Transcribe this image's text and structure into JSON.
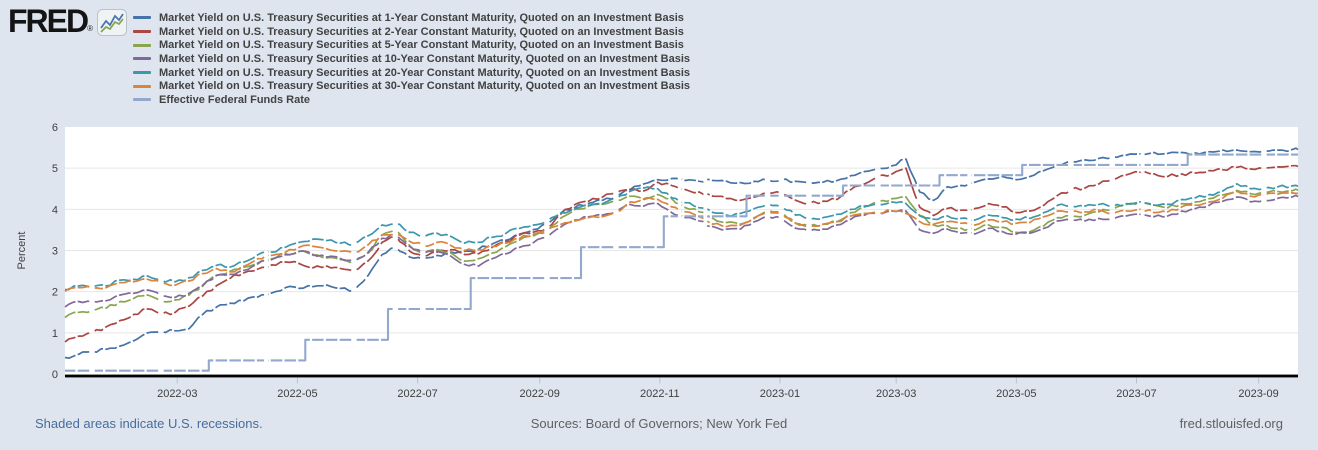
{
  "logo": {
    "text": "FRED",
    "registered": "®"
  },
  "legend": [
    {
      "label": "Market Yield on U.S. Treasury Securities at 1-Year Constant Maturity, Quoted on an Investment Basis",
      "color": "#4572a7"
    },
    {
      "label": "Market Yield on U.S. Treasury Securities at 2-Year Constant Maturity, Quoted on an Investment Basis",
      "color": "#aa4643"
    },
    {
      "label": "Market Yield on U.S. Treasury Securities at 5-Year Constant Maturity, Quoted on an Investment Basis",
      "color": "#89a54e"
    },
    {
      "label": "Market Yield on U.S. Treasury Securities at 10-Year Constant Maturity, Quoted on an Investment Basis",
      "color": "#80699b"
    },
    {
      "label": "Market Yield on U.S. Treasury Securities at 20-Year Constant Maturity, Quoted on an Investment Basis",
      "color": "#3d96ae"
    },
    {
      "label": "Market Yield on U.S. Treasury Securities at 30-Year Constant Maturity, Quoted on an Investment Basis",
      "color": "#db843d"
    },
    {
      "label": "Effective Federal Funds Rate",
      "color": "#92a8cd"
    }
  ],
  "footer": {
    "left": "Shaded areas indicate U.S. recessions.",
    "center": "Sources: Board of Governors; New York Fed",
    "right": "fred.stlouisfed.org"
  },
  "chart_data": {
    "type": "line",
    "title": "",
    "xlabel": "",
    "ylabel": "Percent",
    "ylim": [
      0,
      6
    ],
    "y_ticks": [
      0,
      1,
      2,
      3,
      4,
      5,
      6
    ],
    "grid": true,
    "legend_position": "top-left",
    "x_start_date": "2022-01-03",
    "x_domain_days": [
      0,
      626
    ],
    "sample_step_days": 7,
    "x_ticks": [
      {
        "label": "2022-03",
        "day": 57
      },
      {
        "label": "2022-05",
        "day": 118
      },
      {
        "label": "2022-07",
        "day": 179
      },
      {
        "label": "2022-09",
        "day": 241
      },
      {
        "label": "2022-11",
        "day": 302
      },
      {
        "label": "2023-01",
        "day": 363
      },
      {
        "label": "2023-03",
        "day": 422
      },
      {
        "label": "2023-05",
        "day": 483
      },
      {
        "label": "2023-07",
        "day": 544
      },
      {
        "label": "2023-09",
        "day": 606
      }
    ],
    "gap_days": [
      14,
      49,
      102,
      147,
      168,
      182,
      245,
      280,
      312,
      325,
      357,
      364,
      378,
      413,
      459,
      511,
      532,
      547,
      609
    ],
    "series": [
      {
        "name": "1-Year",
        "color": "#4572a7",
        "values": [
          0.4,
          0.48,
          0.55,
          0.6,
          0.68,
          0.81,
          1.0,
          1.03,
          1.05,
          1.1,
          1.45,
          1.63,
          1.72,
          1.78,
          1.87,
          1.97,
          2.1,
          2.08,
          2.12,
          2.16,
          2.08,
          2.04,
          2.4,
          2.9,
          3.08,
          2.84,
          2.8,
          2.88,
          2.96,
          2.98,
          3.03,
          3.16,
          3.25,
          3.4,
          3.51,
          3.64,
          3.92,
          4.05,
          4.15,
          4.22,
          4.32,
          4.48,
          4.62,
          4.72,
          4.75,
          4.7,
          4.68,
          4.7,
          4.68,
          4.65,
          4.68,
          4.71,
          4.72,
          4.68,
          4.64,
          4.66,
          4.7,
          4.82,
          4.92,
          5.0,
          5.06,
          5.22,
          4.42,
          4.22,
          4.55,
          4.58,
          4.66,
          4.74,
          4.8,
          4.72,
          4.8,
          4.94,
          5.08,
          5.18,
          5.2,
          5.24,
          5.28,
          5.32,
          5.35,
          5.38,
          5.36,
          5.38,
          5.37,
          5.4,
          5.44,
          5.44,
          5.4,
          5.42,
          5.44,
          5.45,
          5.45
        ]
      },
      {
        "name": "2-Year",
        "color": "#aa4643",
        "values": [
          0.78,
          0.92,
          1.0,
          1.15,
          1.3,
          1.45,
          1.58,
          1.45,
          1.5,
          1.65,
          1.9,
          2.15,
          2.33,
          2.46,
          2.55,
          2.65,
          2.72,
          2.68,
          2.58,
          2.62,
          2.56,
          2.5,
          2.75,
          3.2,
          3.35,
          2.98,
          2.85,
          2.96,
          3.02,
          2.9,
          2.92,
          3.08,
          3.22,
          3.38,
          3.45,
          3.56,
          3.9,
          4.12,
          4.2,
          4.3,
          4.4,
          4.48,
          4.45,
          4.66,
          4.58,
          4.48,
          4.42,
          4.32,
          4.26,
          4.22,
          4.3,
          4.4,
          4.38,
          4.22,
          4.14,
          4.2,
          4.24,
          4.48,
          4.62,
          4.8,
          4.86,
          5.0,
          4.05,
          3.85,
          4.02,
          3.98,
          4.02,
          4.14,
          4.06,
          3.92,
          3.96,
          4.1,
          4.34,
          4.48,
          4.52,
          4.62,
          4.72,
          4.84,
          4.9,
          4.86,
          4.8,
          4.86,
          4.88,
          4.94,
          4.96,
          5.02,
          4.98,
          5.0,
          5.03,
          5.06,
          5.04
        ]
      },
      {
        "name": "5-Year",
        "color": "#89a54e",
        "values": [
          1.37,
          1.5,
          1.55,
          1.6,
          1.76,
          1.84,
          1.92,
          1.78,
          1.8,
          1.92,
          2.14,
          2.4,
          2.5,
          2.6,
          2.7,
          2.8,
          2.92,
          2.98,
          2.88,
          2.82,
          2.78,
          2.72,
          2.94,
          3.38,
          3.5,
          3.12,
          2.92,
          3.02,
          2.94,
          2.74,
          2.8,
          2.94,
          3.1,
          3.26,
          3.36,
          3.5,
          3.8,
          4.0,
          4.08,
          4.12,
          4.22,
          4.32,
          4.24,
          4.36,
          4.26,
          4.04,
          3.94,
          3.78,
          3.68,
          3.64,
          3.8,
          3.98,
          3.92,
          3.66,
          3.58,
          3.64,
          3.7,
          3.92,
          4.06,
          4.18,
          4.26,
          4.3,
          3.85,
          3.62,
          3.6,
          3.54,
          3.5,
          3.62,
          3.56,
          3.44,
          3.46,
          3.6,
          3.8,
          3.84,
          3.86,
          3.94,
          4.0,
          4.12,
          4.18,
          4.1,
          4.04,
          4.14,
          4.18,
          4.26,
          4.35,
          4.46,
          4.38,
          4.4,
          4.43,
          4.45,
          4.46
        ]
      },
      {
        "name": "10-Year",
        "color": "#80699b",
        "values": [
          1.63,
          1.76,
          1.76,
          1.78,
          1.92,
          1.96,
          2.04,
          1.9,
          1.86,
          1.96,
          2.16,
          2.4,
          2.42,
          2.52,
          2.68,
          2.78,
          2.9,
          2.98,
          2.9,
          2.84,
          2.8,
          2.76,
          2.96,
          3.3,
          3.38,
          3.1,
          2.92,
          2.98,
          2.86,
          2.66,
          2.62,
          2.8,
          2.92,
          3.08,
          3.2,
          3.32,
          3.58,
          3.74,
          3.82,
          3.86,
          3.96,
          4.12,
          4.08,
          4.14,
          3.92,
          3.8,
          3.72,
          3.58,
          3.52,
          3.52,
          3.7,
          3.84,
          3.76,
          3.54,
          3.46,
          3.52,
          3.62,
          3.76,
          3.86,
          3.92,
          3.96,
          3.96,
          3.5,
          3.42,
          3.52,
          3.42,
          3.4,
          3.54,
          3.46,
          3.4,
          3.42,
          3.54,
          3.72,
          3.74,
          3.72,
          3.78,
          3.76,
          3.84,
          3.88,
          3.82,
          3.84,
          3.96,
          4.02,
          4.1,
          4.2,
          4.3,
          4.18,
          4.22,
          4.27,
          4.3,
          4.31
        ]
      },
      {
        "name": "20-Year",
        "color": "#3d96ae",
        "values": [
          2.05,
          2.14,
          2.12,
          2.14,
          2.28,
          2.3,
          2.38,
          2.28,
          2.24,
          2.34,
          2.52,
          2.64,
          2.6,
          2.72,
          2.9,
          2.96,
          3.08,
          3.2,
          3.28,
          3.24,
          3.18,
          3.16,
          3.36,
          3.62,
          3.66,
          3.44,
          3.32,
          3.42,
          3.34,
          3.18,
          3.2,
          3.32,
          3.42,
          3.54,
          3.62,
          3.72,
          3.92,
          4.02,
          4.1,
          4.14,
          4.26,
          4.44,
          4.52,
          4.5,
          4.28,
          4.16,
          4.04,
          3.92,
          3.86,
          3.9,
          4.02,
          4.14,
          4.06,
          3.86,
          3.76,
          3.8,
          3.88,
          4.0,
          4.08,
          4.12,
          4.18,
          4.14,
          3.84,
          3.76,
          3.84,
          3.78,
          3.74,
          3.86,
          3.8,
          3.76,
          3.78,
          3.92,
          4.1,
          4.08,
          4.08,
          4.12,
          4.06,
          4.14,
          4.18,
          4.1,
          4.12,
          4.24,
          4.28,
          4.36,
          4.45,
          4.62,
          4.5,
          4.52,
          4.55,
          4.57,
          4.56
        ]
      },
      {
        "name": "30-Year",
        "color": "#db843d",
        "values": [
          2.01,
          2.1,
          2.08,
          2.1,
          2.22,
          2.24,
          2.3,
          2.22,
          2.16,
          2.26,
          2.44,
          2.56,
          2.48,
          2.62,
          2.8,
          2.88,
          2.96,
          3.08,
          3.1,
          3.04,
          2.98,
          2.96,
          3.14,
          3.38,
          3.4,
          3.22,
          3.12,
          3.2,
          3.12,
          3.0,
          3.02,
          3.1,
          3.18,
          3.3,
          3.4,
          3.48,
          3.64,
          3.72,
          3.8,
          3.82,
          3.94,
          4.18,
          4.26,
          4.24,
          4.06,
          3.94,
          3.82,
          3.64,
          3.58,
          3.62,
          3.78,
          3.94,
          3.88,
          3.66,
          3.6,
          3.64,
          3.7,
          3.84,
          3.9,
          3.92,
          3.96,
          3.9,
          3.7,
          3.64,
          3.7,
          3.66,
          3.62,
          3.74,
          3.7,
          3.66,
          3.68,
          3.82,
          3.96,
          3.94,
          3.94,
          3.98,
          3.9,
          3.96,
          4.0,
          3.92,
          3.94,
          4.06,
          4.1,
          4.18,
          4.28,
          4.44,
          4.32,
          4.34,
          4.37,
          4.4,
          4.39
        ]
      },
      {
        "name": "Effective Federal Funds Rate",
        "color": "#92a8cd",
        "type": "step",
        "steps": [
          [
            0,
            0.08
          ],
          [
            73,
            0.33
          ],
          [
            122,
            0.83
          ],
          [
            164,
            1.58
          ],
          [
            206,
            2.33
          ],
          [
            262,
            3.08
          ],
          [
            304,
            3.83
          ],
          [
            346,
            4.33
          ],
          [
            395,
            4.58
          ],
          [
            444,
            4.83
          ],
          [
            486,
            5.08
          ],
          [
            570,
            5.33
          ]
        ]
      }
    ]
  }
}
